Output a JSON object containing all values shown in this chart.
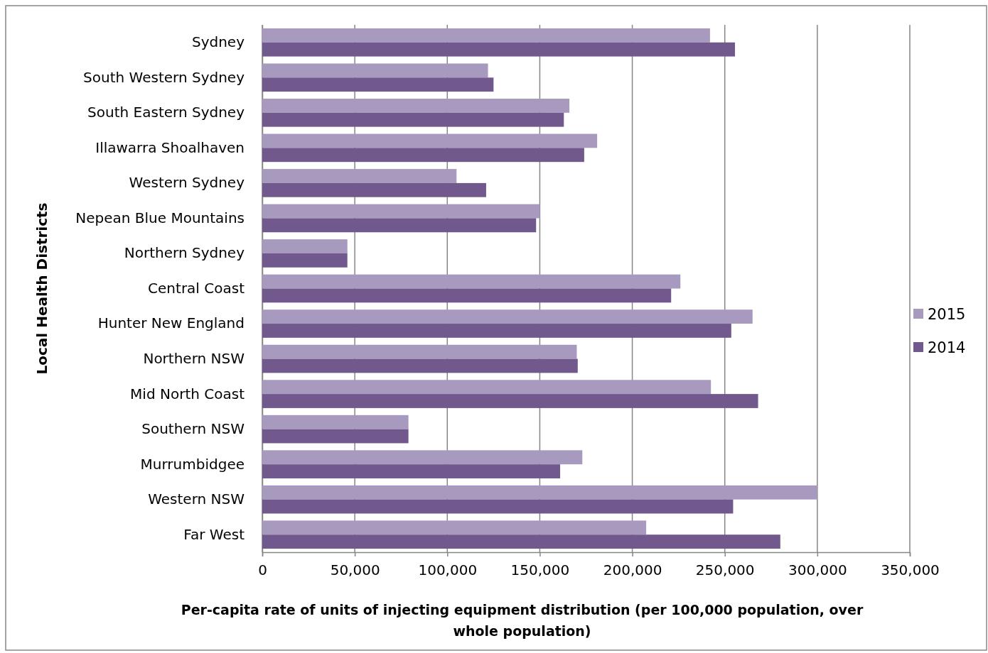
{
  "chart_data": {
    "type": "bar",
    "orientation": "horizontal",
    "xlabel": "Per-capita rate of units of injecting equipment distribution (per 100,000 population, over whole population)",
    "ylabel": "Local Health Districts",
    "categories": [
      "Sydney",
      "South Western Sydney",
      "South Eastern Sydney",
      "Illawarra Shoalhaven",
      "Western Sydney",
      "Nepean Blue Mountains",
      "Northern Sydney",
      "Central Coast",
      "Hunter New England",
      "Northern NSW",
      "Mid North Coast",
      "Southern NSW",
      "Murrumbidgee",
      "Western NSW",
      "Far West"
    ],
    "series": [
      {
        "name": "2015",
        "color": "#a899bf",
        "values": [
          242000,
          122000,
          166000,
          181000,
          105000,
          150000,
          46000,
          226000,
          265000,
          170000,
          242500,
          79000,
          173000,
          300000,
          207500
        ]
      },
      {
        "name": "2014",
        "color": "#71598e",
        "values": [
          255500,
          125000,
          163000,
          174000,
          121000,
          148000,
          46000,
          221000,
          253500,
          170500,
          268000,
          79000,
          161000,
          254500,
          280000
        ]
      }
    ],
    "xlim": [
      0,
      350000
    ],
    "xticks": [
      {
        "value": 0,
        "label": "0"
      },
      {
        "value": 50000,
        "label": "50,000"
      },
      {
        "value": 100000,
        "label": "100,000"
      },
      {
        "value": 150000,
        "label": "150,000"
      },
      {
        "value": 200000,
        "label": "200,000"
      },
      {
        "value": 250000,
        "label": "250,000"
      },
      {
        "value": 300000,
        "label": "300,000"
      },
      {
        "value": 350000,
        "label": "350,000"
      }
    ],
    "grid": "x",
    "legend": "right"
  }
}
